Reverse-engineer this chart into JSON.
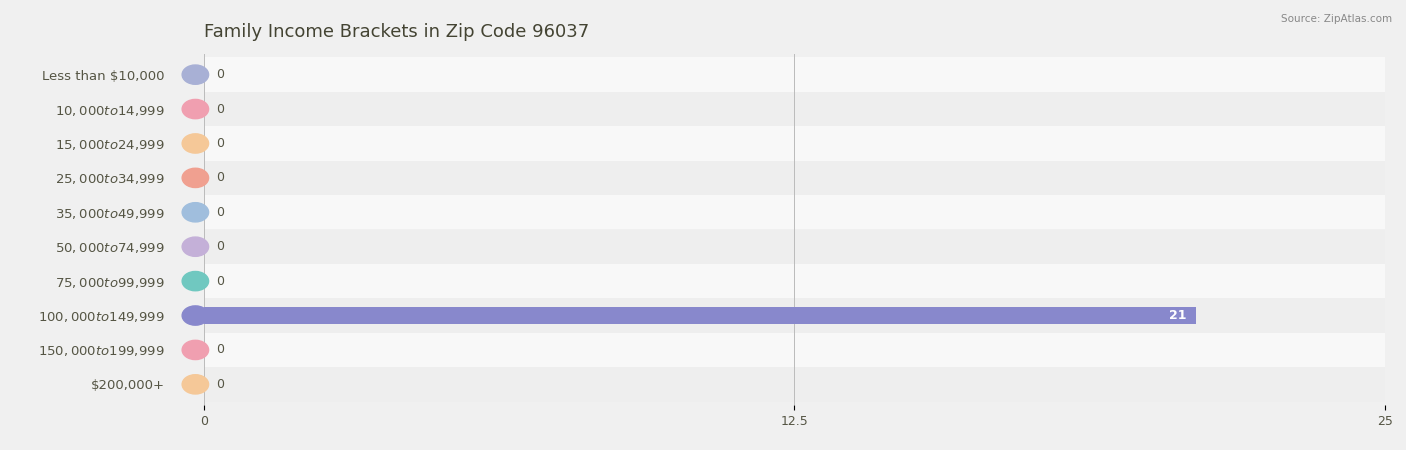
{
  "title": "Family Income Brackets in Zip Code 96037",
  "source": "Source: ZipAtlas.com",
  "categories": [
    "Less than $10,000",
    "$10,000 to $14,999",
    "$15,000 to $24,999",
    "$25,000 to $34,999",
    "$35,000 to $49,999",
    "$50,000 to $74,999",
    "$75,000 to $99,999",
    "$100,000 to $149,999",
    "$150,000 to $199,999",
    "$200,000+"
  ],
  "values": [
    0,
    0,
    0,
    0,
    0,
    0,
    0,
    21,
    0,
    0
  ],
  "bar_colors": [
    "#a8b0d5",
    "#f09fb0",
    "#f5c898",
    "#f0a090",
    "#a0bedd",
    "#c4b0d8",
    "#70c8c0",
    "#8888cc",
    "#f09fb0",
    "#f5c898"
  ],
  "background_color": "#f0f0f0",
  "row_bg_light": "#f8f8f8",
  "row_bg_dark": "#eeeeee",
  "xlim": [
    0,
    25
  ],
  "xticks": [
    0,
    12.5,
    25
  ],
  "title_fontsize": 13,
  "label_fontsize": 9.5,
  "value_fontsize": 9,
  "text_color": "#555544",
  "bar_height": 0.52
}
